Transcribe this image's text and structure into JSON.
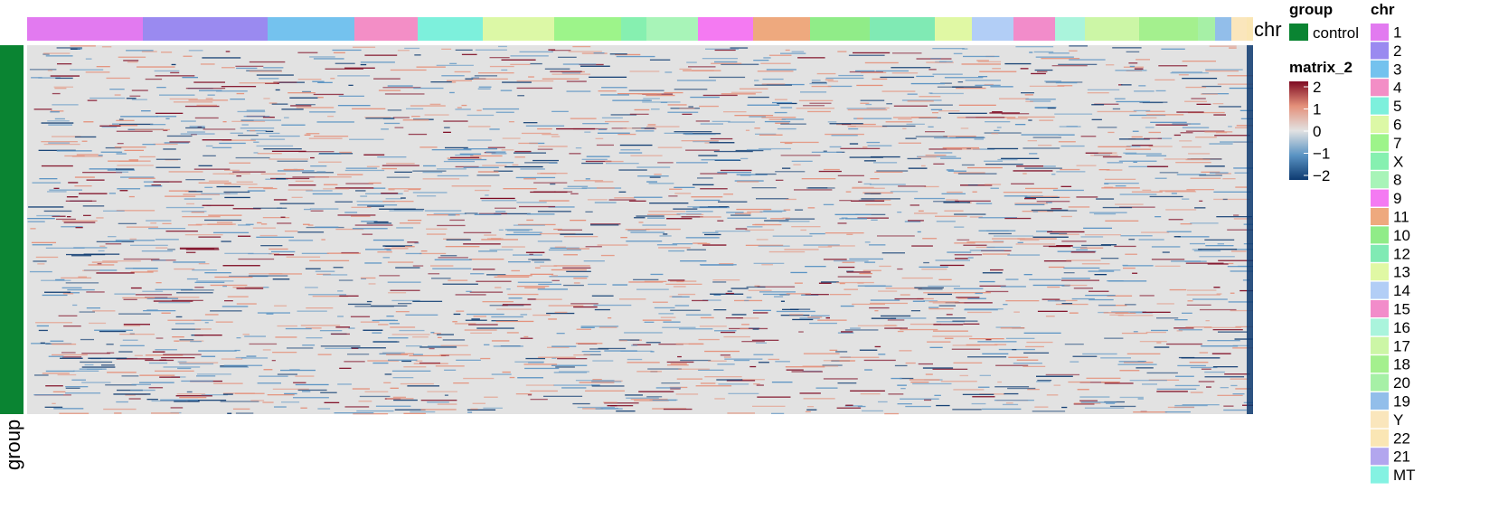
{
  "chart_data": {
    "type": "heatmap",
    "column_annotation": {
      "name": "chr",
      "segments": [
        {
          "chr": "1",
          "color": "#E27AF0"
        },
        {
          "chr": "2",
          "color": "#9A8AF0"
        },
        {
          "chr": "3",
          "color": "#74C2EE"
        },
        {
          "chr": "4",
          "color": "#F38EC6"
        },
        {
          "chr": "5",
          "color": "#7DF0DC"
        },
        {
          "chr": "6",
          "color": "#DCF8A6"
        },
        {
          "chr": "7",
          "color": "#9DF48A"
        },
        {
          "chr": "X",
          "color": "#86F0B0"
        },
        {
          "chr": "8",
          "color": "#A8F4B8"
        },
        {
          "chr": "9",
          "color": "#F47AF2"
        },
        {
          "chr": "11",
          "color": "#EEA97E"
        },
        {
          "chr": "10",
          "color": "#90EC88"
        },
        {
          "chr": "12",
          "color": "#80EAB4"
        },
        {
          "chr": "13",
          "color": "#E0F8A4"
        },
        {
          "chr": "14",
          "color": "#B2CEF6"
        },
        {
          "chr": "15",
          "color": "#F28CCA"
        },
        {
          "chr": "16",
          "color": "#AAF4DC"
        },
        {
          "chr": "17",
          "color": "#CCF6A6"
        },
        {
          "chr": "18",
          "color": "#A4F08E"
        },
        {
          "chr": "20",
          "color": "#A6F0A6"
        },
        {
          "chr": "19",
          "color": "#92BEEA"
        },
        {
          "chr": "Y",
          "color": "#FAE6BC"
        },
        {
          "chr": "22",
          "color": "#FAE6B4"
        },
        {
          "chr": "21",
          "color": "#B2A6EE"
        },
        {
          "chr": "MT",
          "color": "#84F2E2"
        }
      ]
    },
    "row_annotation": {
      "name": "group",
      "value": "control",
      "color": "#0A8432"
    },
    "color_scale": {
      "name": "matrix_2",
      "breaks": [
        -2,
        -1,
        0,
        1,
        2
      ],
      "colors": [
        "#0D3A70",
        "#5A93C3",
        "#E2E2E2",
        "#E4907A",
        "#7E0A22"
      ]
    }
  },
  "labels": {
    "chr_axis": "chr",
    "group_axis": "group",
    "legend_group_title": "group",
    "legend_group_item": "control",
    "legend_matrix_title": "matrix_2",
    "legend_chr_title": "chr",
    "legend_ticks": [
      "2",
      "1",
      "0",
      "−1",
      "−2"
    ]
  }
}
